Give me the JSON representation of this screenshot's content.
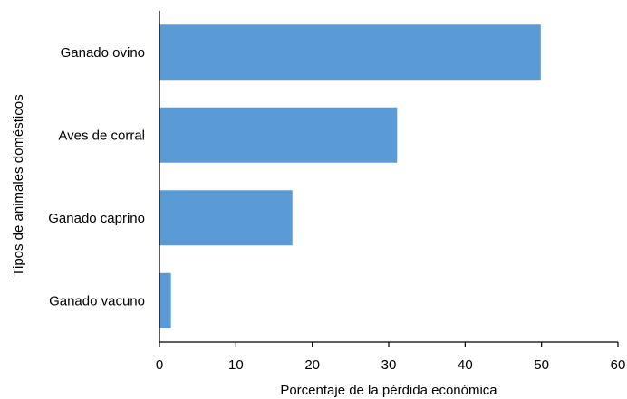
{
  "chart_data": {
    "type": "bar",
    "orientation": "horizontal",
    "categories": [
      "Ganado ovino",
      "Aves de corral",
      "Ganado caprino",
      "Ganado vacuno"
    ],
    "values": [
      49.9,
      31.1,
      17.4,
      1.5
    ],
    "xlabel": "Porcentaje de la pérdida económica",
    "ylabel": "Tipos de animales domésticos",
    "xlim": [
      0,
      60
    ],
    "xticks": [
      0,
      10,
      20,
      30,
      40,
      50,
      60
    ],
    "bar_color": "#5b9bd5",
    "grid": false,
    "legend": "none"
  }
}
